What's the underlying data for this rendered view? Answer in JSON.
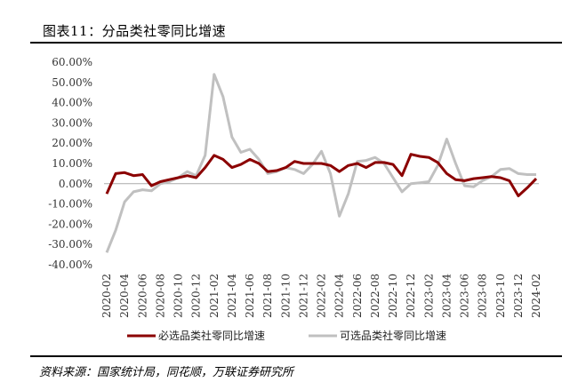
{
  "header": {
    "title": "图表11：分品类社零同比增速"
  },
  "footer": {
    "source": "资料来源：国家统计局，同花顺，万联证券研究所"
  },
  "chart_data": {
    "type": "line",
    "title": "图表11：分品类社零同比增速",
    "ylim": [
      -40,
      60
    ],
    "y_ticks": [
      "60.00%",
      "50.00%",
      "40.00%",
      "30.00%",
      "20.00%",
      "10.00%",
      "0.00%",
      "-10.00%",
      "-20.00%",
      "-30.00%",
      "-40.00%"
    ],
    "x_tick_labels": [
      "2020-02",
      "2020-04",
      "2020-06",
      "2020-08",
      "2020-10",
      "2020-12",
      "2021-02",
      "2021-04",
      "2021-06",
      "2021-08",
      "2021-10",
      "2021-12",
      "2022-02",
      "2022-04",
      "2022-06",
      "2022-08",
      "2022-10",
      "2022-12",
      "2023-02",
      "2023-04",
      "2023-06",
      "2023-08",
      "2023-10",
      "2023-12",
      "2024-02"
    ],
    "x": [
      "2020-02",
      "2020-03",
      "2020-04",
      "2020-05",
      "2020-06",
      "2020-07",
      "2020-08",
      "2020-09",
      "2020-10",
      "2020-11",
      "2020-12",
      "2021-01",
      "2021-02",
      "2021-03",
      "2021-04",
      "2021-05",
      "2021-06",
      "2021-07",
      "2021-08",
      "2021-09",
      "2021-10",
      "2021-11",
      "2021-12",
      "2022-01",
      "2022-02",
      "2022-03",
      "2022-04",
      "2022-05",
      "2022-06",
      "2022-07",
      "2022-08",
      "2022-09",
      "2022-10",
      "2022-11",
      "2022-12",
      "2023-01",
      "2023-02",
      "2023-03",
      "2023-04",
      "2023-05",
      "2023-06",
      "2023-07",
      "2023-08",
      "2023-09",
      "2023-10",
      "2023-11",
      "2023-12",
      "2024-01",
      "2024-02"
    ],
    "series": [
      {
        "name": "必选品类社零同比增速",
        "color": "#8b0000",
        "values": [
          -5,
          5,
          5.5,
          4,
          4.5,
          -1,
          1,
          2,
          3,
          4,
          3,
          8,
          14,
          12,
          8,
          9.5,
          12,
          10,
          6,
          6.5,
          8,
          11,
          10,
          10,
          10,
          9,
          6,
          9,
          10,
          8,
          10.5,
          10.5,
          9.5,
          4,
          14.5,
          13.5,
          13,
          10.5,
          5,
          2,
          1.5,
          2.5,
          3,
          3.5,
          3,
          1.5,
          -6,
          -2,
          2.5
        ]
      },
      {
        "name": "可选品类社零同比增速",
        "color": "#c0c0c0",
        "values": [
          -34,
          -23,
          -9,
          -4,
          -3,
          -3.5,
          0,
          1,
          3,
          6,
          4,
          14,
          54,
          43,
          23,
          15.5,
          17,
          12,
          5,
          6,
          8,
          7,
          5,
          9.5,
          16,
          5,
          -16,
          -5,
          11,
          11.5,
          13,
          10,
          3,
          -4,
          0,
          0.5,
          1,
          9,
          22,
          10,
          -1,
          -1.5,
          1.5,
          3.5,
          7,
          7.5,
          5,
          4.5,
          4.5
        ]
      }
    ]
  }
}
